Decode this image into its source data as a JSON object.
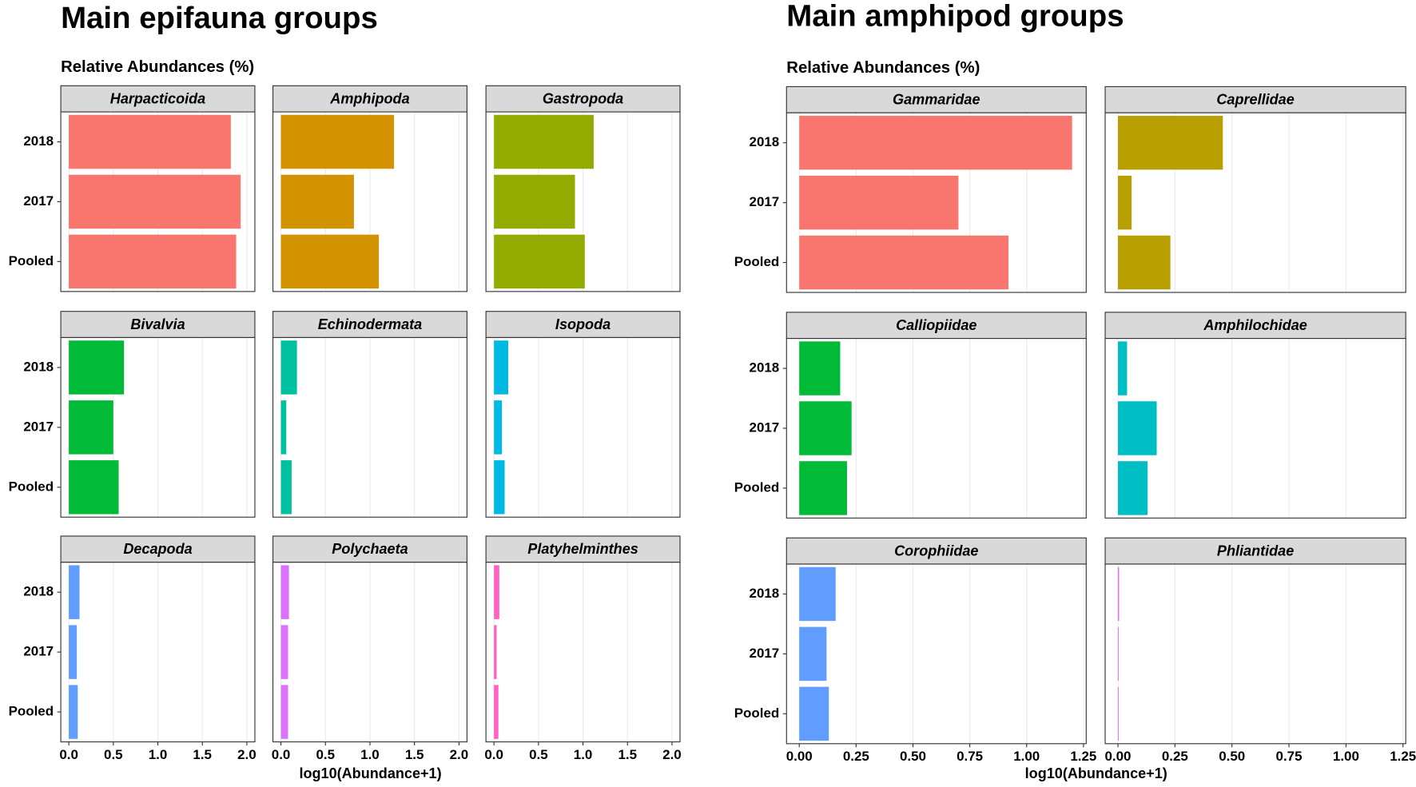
{
  "chart_data": [
    {
      "type": "bar",
      "title": "Main epifauna groups",
      "subtitle": "Relative Abundances (%)",
      "xlabel": "log10(Abundance+1)",
      "categories": [
        "2018",
        "2017",
        "Pooled"
      ],
      "xlim": [
        -0.09,
        2.09
      ],
      "xticks": [
        {
          "value": 0,
          "label": "0.0"
        },
        0.5,
        {
          "value": 1,
          "label": "1.0"
        },
        1.5,
        {
          "value": 2,
          "label": "2.0"
        }
      ],
      "grid": true,
      "series": [
        {
          "name": "Harpacticoida",
          "color": "#F8766D",
          "values": [
            1.82,
            1.93,
            1.88
          ]
        },
        {
          "name": "Amphipoda",
          "color": "#D39200",
          "values": [
            1.27,
            0.82,
            1.1
          ]
        },
        {
          "name": "Gastropoda",
          "color": "#93AA00",
          "values": [
            1.12,
            0.91,
            1.02
          ]
        },
        {
          "name": "Bivalvia",
          "color": "#00BA38",
          "values": [
            0.62,
            0.5,
            0.56
          ]
        },
        {
          "name": "Echinodermata",
          "color": "#00C19F",
          "values": [
            0.18,
            0.06,
            0.12
          ]
        },
        {
          "name": "Isopoda",
          "color": "#00B9E3",
          "values": [
            0.16,
            0.09,
            0.12
          ]
        },
        {
          "name": "Decapoda",
          "color": "#619CFF",
          "values": [
            0.12,
            0.09,
            0.1
          ]
        },
        {
          "name": "Polychaeta",
          "color": "#DB72FB",
          "values": [
            0.09,
            0.08,
            0.08
          ]
        },
        {
          "name": "Platyhelminthes",
          "color": "#FF61C3",
          "values": [
            0.06,
            0.03,
            0.05
          ]
        }
      ]
    },
    {
      "type": "bar",
      "title": "Main amphipod groups",
      "subtitle": "Relative Abundances (%)",
      "xlabel": "log10(Abundance+1)",
      "categories": [
        "2018",
        "2017",
        "Pooled"
      ],
      "xlim": [
        -0.056,
        1.262
      ],
      "xticks": [
        {
          "value": 0,
          "label": "0.00"
        },
        0.25,
        {
          "value": 0.5,
          "label": "0.50"
        },
        0.75,
        {
          "value": 1,
          "label": "1.00"
        },
        1.25
      ],
      "grid": true,
      "series": [
        {
          "name": "Gammaridae",
          "color": "#F8766D",
          "values": [
            1.2,
            0.7,
            0.92
          ]
        },
        {
          "name": "Caprellidae",
          "color": "#B79F00",
          "values": [
            0.46,
            0.06,
            0.23
          ]
        },
        {
          "name": "Calliopiidae",
          "color": "#00BA38",
          "values": [
            0.18,
            0.23,
            0.21
          ]
        },
        {
          "name": "Amphilochidae",
          "color": "#00BFC4",
          "values": [
            0.04,
            0.17,
            0.13
          ]
        },
        {
          "name": "Corophiidae",
          "color": "#619CFF",
          "values": [
            0.16,
            0.12,
            0.13
          ]
        },
        {
          "name": "Phliantidae",
          "color": "#F564E3",
          "values": [
            0.005,
            0,
            0
          ]
        }
      ]
    }
  ]
}
